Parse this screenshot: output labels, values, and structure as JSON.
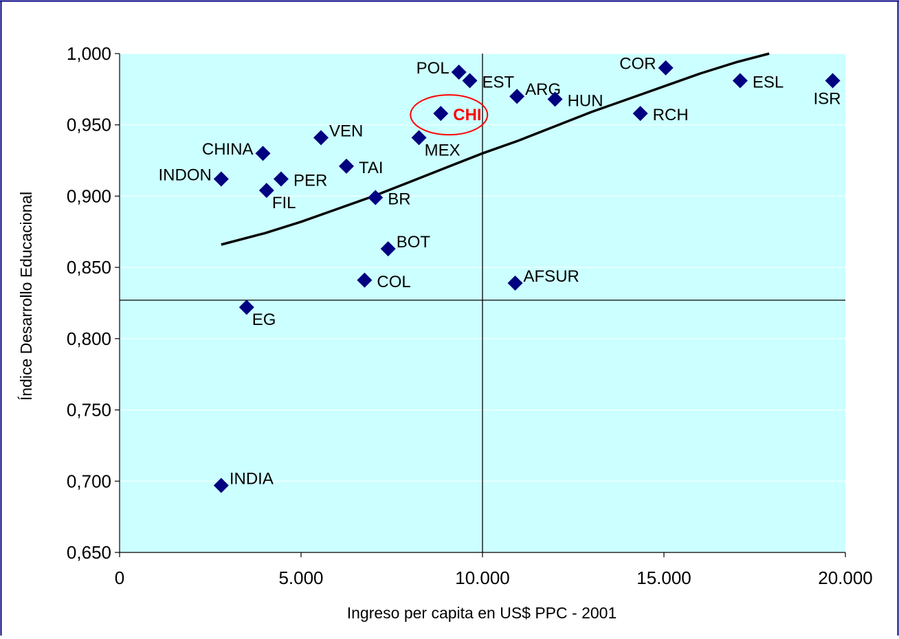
{
  "chart_data": {
    "type": "scatter",
    "title": "",
    "xlabel": "Ingreso per capita en US$ PPC - 2001",
    "ylabel": "Índice Desarrollo Educacional",
    "xlim": [
      0,
      20000
    ],
    "ylim": [
      0.65,
      1.0
    ],
    "grid": "horizontal",
    "legend": "none",
    "x_ticks": [
      {
        "value": 0,
        "label": "0"
      },
      {
        "value": 5000,
        "label": "5.000"
      },
      {
        "value": 10000,
        "label": "10.000"
      },
      {
        "value": 15000,
        "label": "15.000"
      },
      {
        "value": 20000,
        "label": "20.000"
      }
    ],
    "y_ticks": [
      {
        "value": 0.65,
        "label": "0,650"
      },
      {
        "value": 0.7,
        "label": "0,700"
      },
      {
        "value": 0.75,
        "label": "0,750"
      },
      {
        "value": 0.8,
        "label": "0,800"
      },
      {
        "value": 0.85,
        "label": "0,850"
      },
      {
        "value": 0.9,
        "label": "0,900"
      },
      {
        "value": 0.95,
        "label": "0,950"
      },
      {
        "value": 1.0,
        "label": "1,000"
      }
    ],
    "points": [
      {
        "label": "POL",
        "x": 9350,
        "y": 0.987,
        "label_pos": "left"
      },
      {
        "label": "EST",
        "x": 9650,
        "y": 0.981,
        "label_pos": "right"
      },
      {
        "label": "ARG",
        "x": 10950,
        "y": 0.97,
        "label_pos": "upper-right"
      },
      {
        "label": "HUN",
        "x": 12000,
        "y": 0.968,
        "label_pos": "right"
      },
      {
        "label": "COR",
        "x": 15050,
        "y": 0.99,
        "label_pos": "left"
      },
      {
        "label": "ESL",
        "x": 17100,
        "y": 0.981,
        "label_pos": "right"
      },
      {
        "label": "ISR",
        "x": 19650,
        "y": 0.981,
        "label_pos": "below"
      },
      {
        "label": "RCH",
        "x": 14350,
        "y": 0.958,
        "label_pos": "right"
      },
      {
        "label": "CHI",
        "x": 8850,
        "y": 0.958,
        "label_pos": "right",
        "highlight": true
      },
      {
        "label": "MEX",
        "x": 8250,
        "y": 0.941,
        "label_pos": "lower-right"
      },
      {
        "label": "VEN",
        "x": 5550,
        "y": 0.941,
        "label_pos": "upper-right"
      },
      {
        "label": "CHINA",
        "x": 3950,
        "y": 0.93,
        "label_pos": "left"
      },
      {
        "label": "TAI",
        "x": 6250,
        "y": 0.921,
        "label_pos": "right"
      },
      {
        "label": "INDON",
        "x": 2800,
        "y": 0.912,
        "label_pos": "left"
      },
      {
        "label": "PER",
        "x": 4450,
        "y": 0.912,
        "label_pos": "right"
      },
      {
        "label": "FIL",
        "x": 4050,
        "y": 0.904,
        "label_pos": "lower-right"
      },
      {
        "label": "BR",
        "x": 7050,
        "y": 0.899,
        "label_pos": "right"
      },
      {
        "label": "BOT",
        "x": 7400,
        "y": 0.863,
        "label_pos": "upper-right"
      },
      {
        "label": "COL",
        "x": 6750,
        "y": 0.841,
        "label_pos": "right"
      },
      {
        "label": "AFSUR",
        "x": 10900,
        "y": 0.839,
        "label_pos": "upper-right"
      },
      {
        "label": "EG",
        "x": 3500,
        "y": 0.822,
        "label_pos": "lower-right"
      },
      {
        "label": "INDIA",
        "x": 2800,
        "y": 0.697,
        "label_pos": "upper-right"
      }
    ],
    "trendline": [
      {
        "x": 2800,
        "y": 0.866
      },
      {
        "x": 4000,
        "y": 0.874
      },
      {
        "x": 5000,
        "y": 0.882
      },
      {
        "x": 6000,
        "y": 0.891
      },
      {
        "x": 7000,
        "y": 0.9
      },
      {
        "x": 8000,
        "y": 0.91
      },
      {
        "x": 9000,
        "y": 0.92
      },
      {
        "x": 10000,
        "y": 0.93
      },
      {
        "x": 11000,
        "y": 0.939
      },
      {
        "x": 12000,
        "y": 0.949
      },
      {
        "x": 13000,
        "y": 0.959
      },
      {
        "x": 14000,
        "y": 0.968
      },
      {
        "x": 15000,
        "y": 0.977
      },
      {
        "x": 16000,
        "y": 0.986
      },
      {
        "x": 17000,
        "y": 0.994
      },
      {
        "x": 17900,
        "y": 1.0
      }
    ],
    "reference_lines": {
      "x": 10000,
      "y": 0.827
    },
    "highlight_label": "CHI"
  },
  "colors": {
    "plot_bg": "#ccffff",
    "marker": "#000080",
    "trendline": "#000000",
    "highlight": "#ff0000",
    "frame": "#000080",
    "text": "#000000",
    "gridline": "#ffffff"
  }
}
